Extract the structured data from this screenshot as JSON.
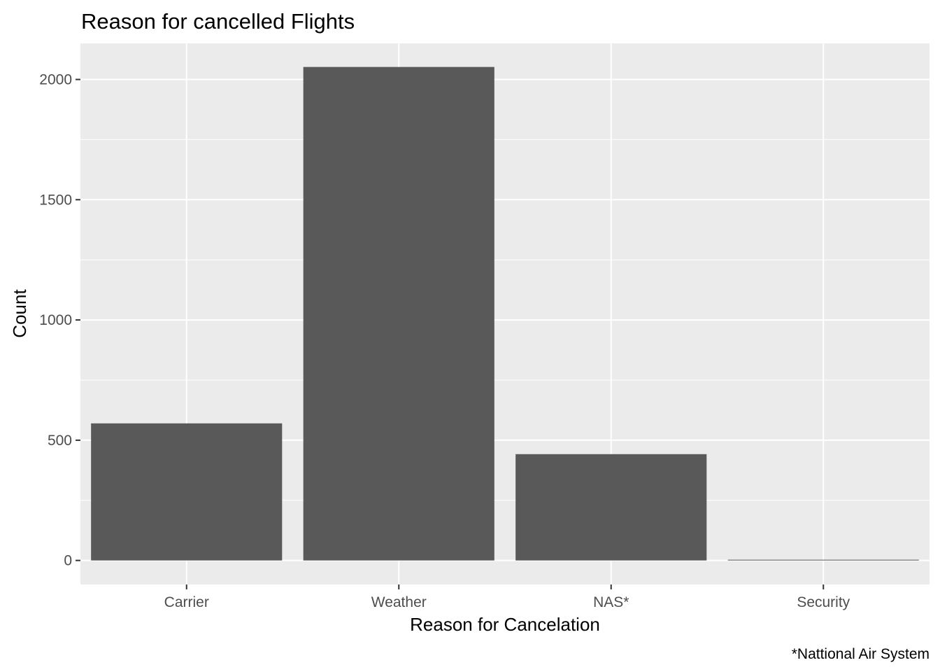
{
  "chart_data": {
    "type": "bar",
    "title": "Reason for cancelled Flights",
    "xlabel": "Reason for Cancelation",
    "ylabel": "Count",
    "caption": "*Nattional Air System",
    "categories": [
      "Carrier",
      "Weather",
      "NAS*",
      "Security"
    ],
    "values": [
      570,
      2052,
      442,
      3
    ],
    "ylim": [
      -100,
      2150
    ],
    "yticks": [
      0,
      500,
      1000,
      1500,
      2000
    ],
    "ytick_labels": [
      "0",
      "500",
      "1000",
      "1500",
      "2000"
    ],
    "grid": true,
    "colors": {
      "panel_background": "#ebebeb",
      "grid_major": "#ffffff",
      "bar_fill": "#595959",
      "tick_color": "#333333"
    }
  }
}
